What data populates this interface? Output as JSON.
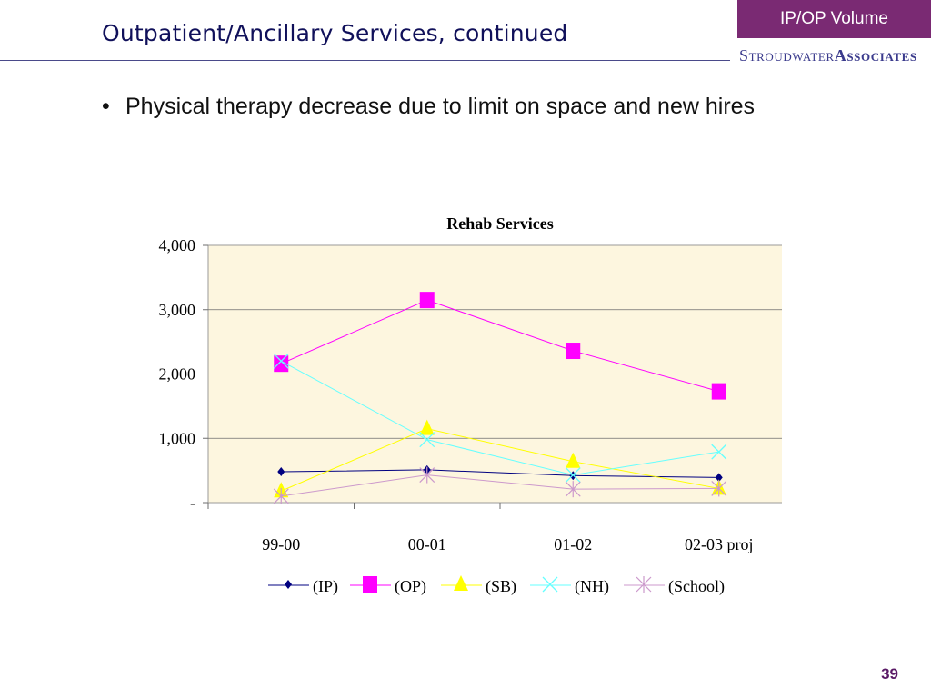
{
  "slide": {
    "title": "Outpatient/Ancillary Services, continued",
    "section_tag": "IP/OP Volume",
    "logo": {
      "first": "S",
      "rest": "TROUDWATER ",
      "second_big": "A",
      "second_rest": "SSOCIATES"
    },
    "bullets": [
      "Physical therapy decrease due to limit on space and new hires"
    ],
    "page_number": "39"
  },
  "chart_data": {
    "type": "line",
    "title": "Rehab Services",
    "categories": [
      "99-00",
      "00-01",
      "01-02",
      "02-03 proj"
    ],
    "xlabel": "",
    "ylabel": "",
    "ylim": [
      0,
      4000
    ],
    "yticks": [
      0,
      1000,
      2000,
      3000,
      4000
    ],
    "ytick_labels": [
      "-",
      "1,000",
      "2,000",
      "3,000",
      "4,000"
    ],
    "grid": true,
    "plot_background": "#fdf6df",
    "legend_position": "bottom",
    "series": [
      {
        "name": "(IP)",
        "values": [
          480,
          510,
          420,
          390
        ],
        "color": "#000080",
        "marker": "diamond"
      },
      {
        "name": "(OP)",
        "values": [
          2160,
          3150,
          2360,
          1730
        ],
        "color": "#ff00ff",
        "marker": "square"
      },
      {
        "name": "(SB)",
        "values": [
          180,
          1150,
          640,
          220
        ],
        "color": "#ffff00",
        "marker": "triangle"
      },
      {
        "name": "(NH)",
        "values": [
          2200,
          980,
          430,
          790
        ],
        "color": "#66ffff",
        "marker": "x"
      },
      {
        "name": "(School)",
        "values": [
          100,
          430,
          210,
          220
        ],
        "color": "#cc99cc",
        "marker": "star"
      }
    ]
  }
}
